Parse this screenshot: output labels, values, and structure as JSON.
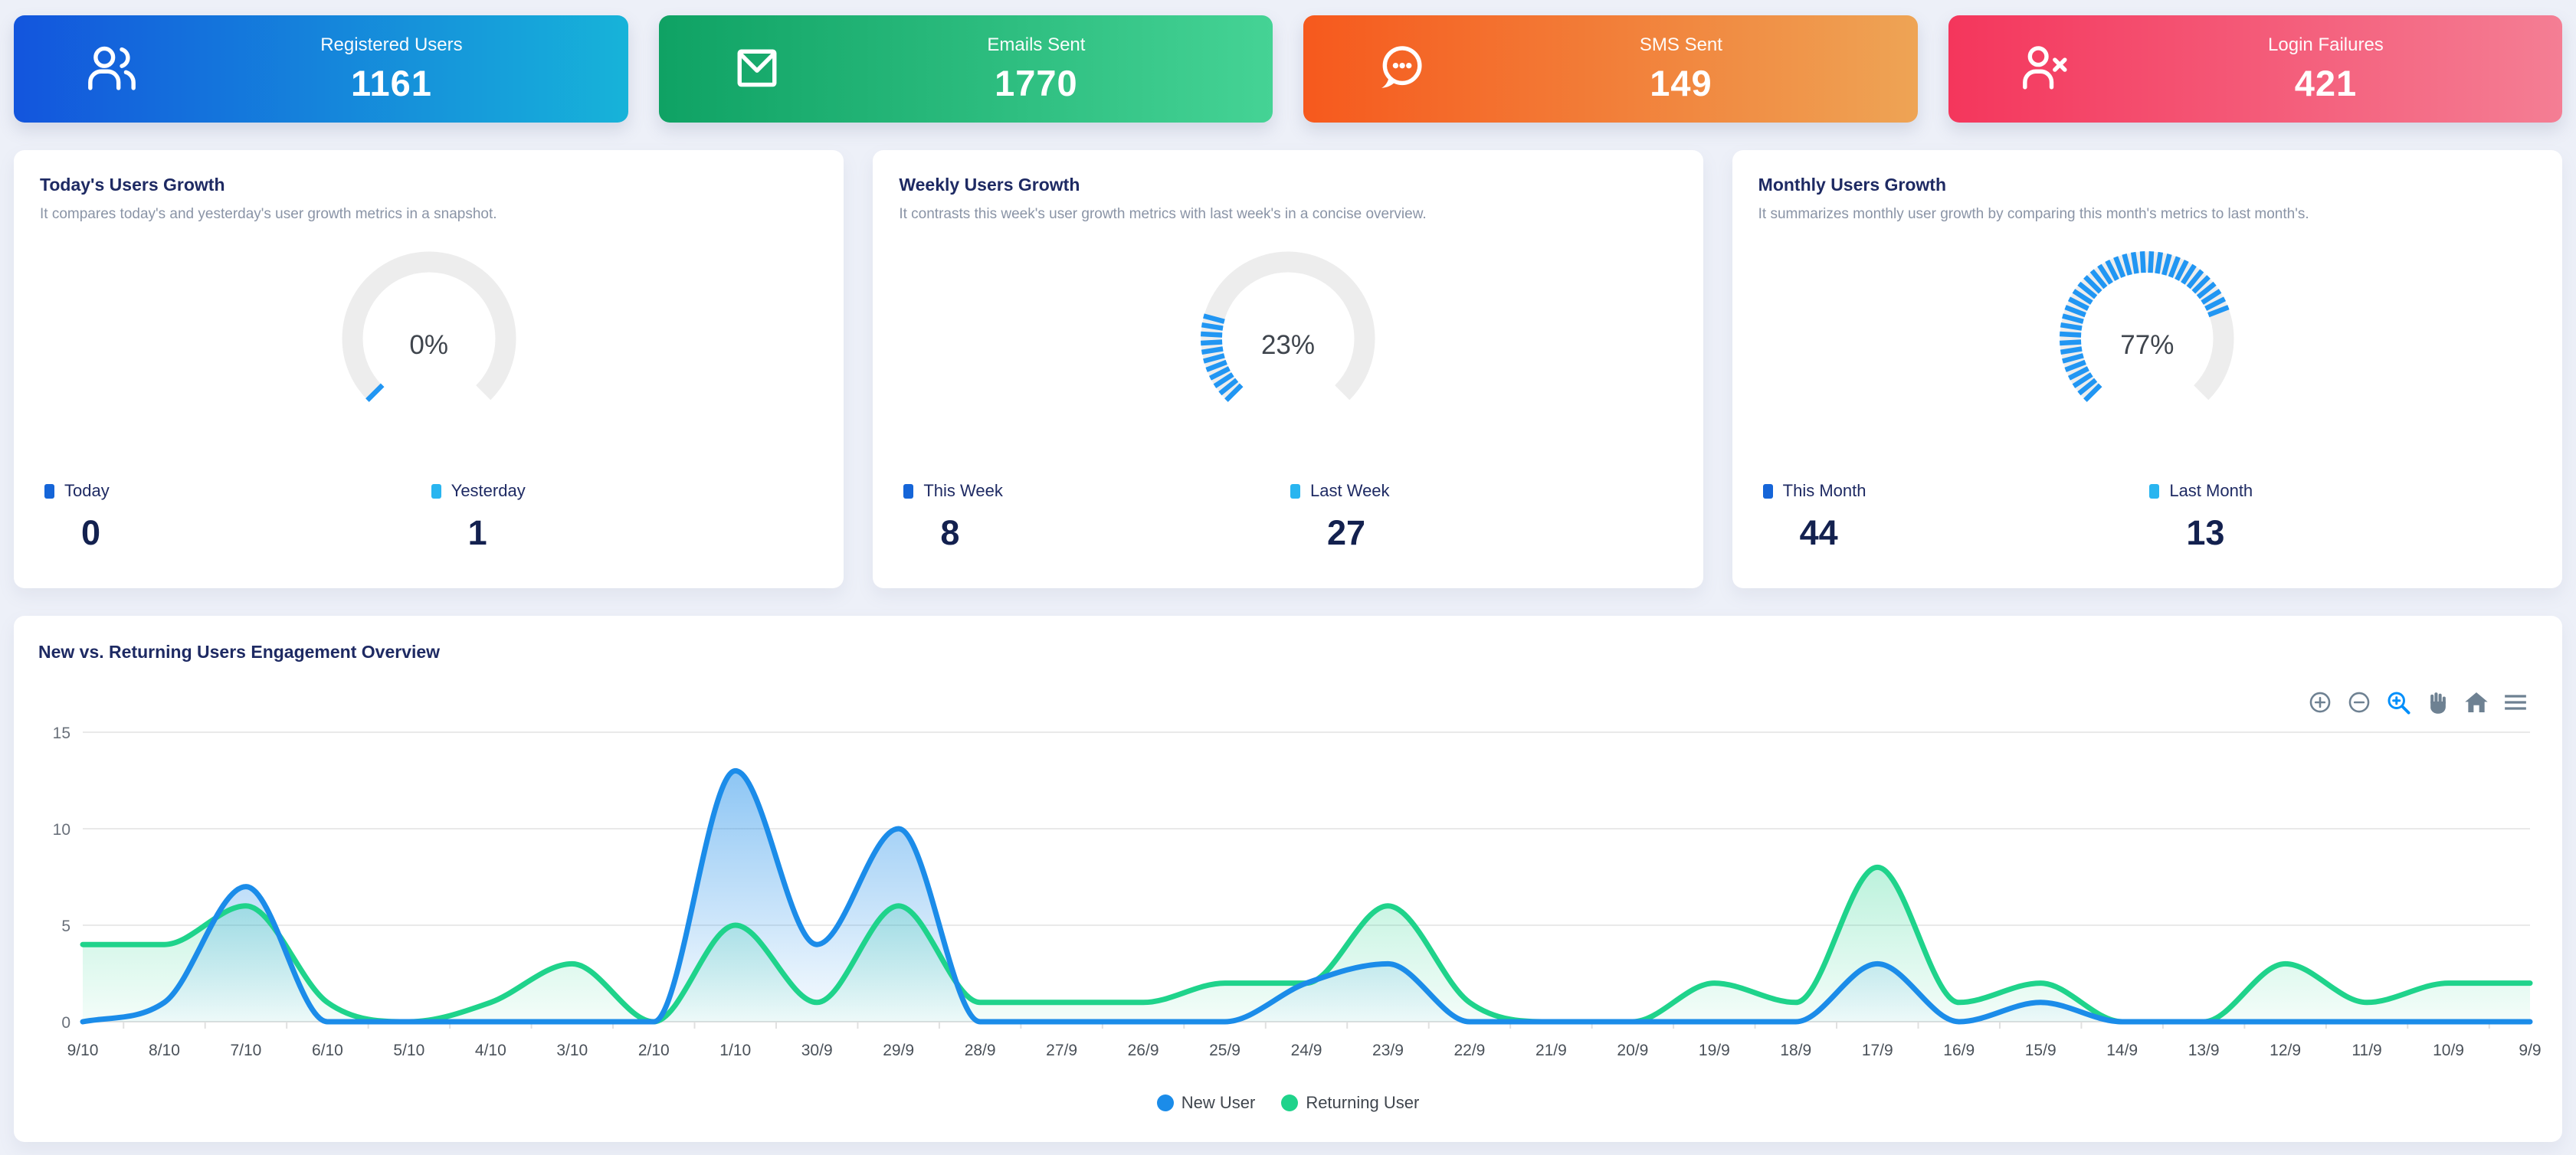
{
  "page": {
    "background": "#edf0f8"
  },
  "stat_cards": [
    {
      "label": "Registered Users",
      "value": "1161",
      "icon": "users-icon",
      "gradient_from": "#1355dd",
      "gradient_to": "#17b3d9"
    },
    {
      "label": "Emails Sent",
      "value": "1770",
      "icon": "envelope-icon",
      "gradient_from": "#0fa264",
      "gradient_to": "#45d395"
    },
    {
      "label": "SMS Sent",
      "value": "149",
      "icon": "chat-bubble-icon",
      "gradient_from": "#f6591d",
      "gradient_to": "#eea455"
    },
    {
      "label": "Login Failures",
      "value": "421",
      "icon": "user-x-icon",
      "gradient_from": "#f4365c",
      "gradient_to": "#f47e94"
    }
  ],
  "gauge_cards": [
    {
      "title": "Today's Users Growth",
      "subtitle": "It compares today's and yesterday's user growth metrics in a snapshot.",
      "percent": 0,
      "percent_label": "0%",
      "stripe_color": "#2196f3",
      "track_color": "#ededed",
      "legend": [
        {
          "label": "Today",
          "value": "0",
          "color": "#1565d8"
        },
        {
          "label": "Yesterday",
          "value": "1",
          "color": "#29b5f0"
        }
      ]
    },
    {
      "title": "Weekly Users Growth",
      "subtitle": "It contrasts this week's user growth metrics with last week's in a concise overview.",
      "percent": 23,
      "percent_label": "23%",
      "stripe_color": "#2196f3",
      "track_color": "#ededed",
      "legend": [
        {
          "label": "This Week",
          "value": "8",
          "color": "#1565d8"
        },
        {
          "label": "Last Week",
          "value": "27",
          "color": "#29b5f0"
        }
      ]
    },
    {
      "title": "Monthly Users Growth",
      "subtitle": "It summarizes monthly user growth by comparing this month's metrics to last month's.",
      "percent": 77,
      "percent_label": "77%",
      "stripe_color": "#2196f3",
      "track_color": "#ededed",
      "legend": [
        {
          "label": "This Month",
          "value": "44",
          "color": "#1565d8"
        },
        {
          "label": "Last Month",
          "value": "13",
          "color": "#29b5f0"
        }
      ]
    }
  ],
  "chart": {
    "title": "New vs. Returning Users Engagement Overview",
    "toolbar_icons": [
      "zoom-in-icon",
      "zoom-out-icon",
      "selection-zoom-icon",
      "panning-icon",
      "home-icon",
      "menu-icon"
    ]
  },
  "chart_data": {
    "type": "area",
    "title": "New vs. Returning Users Engagement Overview",
    "categories": [
      "9/10",
      "8/10",
      "7/10",
      "6/10",
      "5/10",
      "4/10",
      "3/10",
      "2/10",
      "1/10",
      "30/9",
      "29/9",
      "28/9",
      "27/9",
      "26/9",
      "25/9",
      "24/9",
      "23/9",
      "22/9",
      "21/9",
      "20/9",
      "19/9",
      "18/9",
      "17/9",
      "16/9",
      "15/9",
      "14/9",
      "13/9",
      "12/9",
      "11/9",
      "10/9",
      "9/9"
    ],
    "series": [
      {
        "name": "New User",
        "color": "#1b8ce9",
        "values": [
          0,
          1,
          7,
          0,
          0,
          0,
          0,
          0,
          13,
          4,
          10,
          0,
          0,
          0,
          0,
          2,
          3,
          0,
          0,
          0,
          0,
          0,
          3,
          0,
          1,
          0,
          0,
          0,
          0,
          0,
          0
        ]
      },
      {
        "name": "Returning User",
        "color": "#1fd38b",
        "values": [
          4,
          4,
          6,
          1,
          0,
          1,
          3,
          0,
          5,
          1,
          6,
          1,
          1,
          1,
          2,
          2,
          6,
          1,
          0,
          0,
          2,
          1,
          8,
          1,
          2,
          0,
          0,
          3,
          1,
          2,
          2
        ]
      }
    ],
    "xlabel": "",
    "ylabel": "",
    "ylim": [
      0,
      15
    ],
    "yticks": [
      0,
      5,
      10,
      15
    ],
    "grid": "horizontal",
    "legend_position": "bottom",
    "smooth": true
  }
}
